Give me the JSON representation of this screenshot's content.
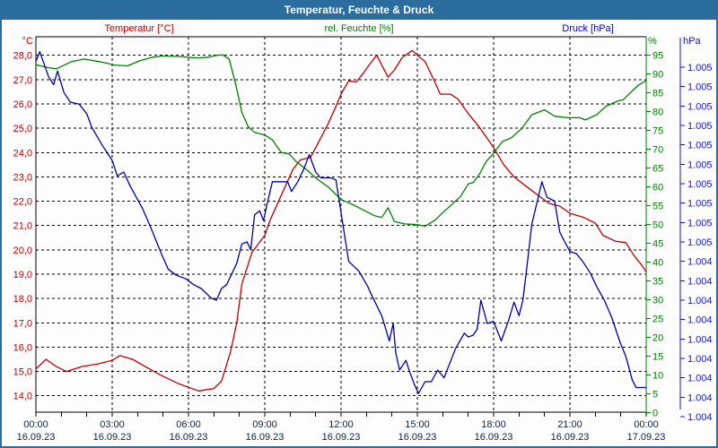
{
  "window": {
    "title": "Temperatur, Feuchte & Druck"
  },
  "header": {
    "temp_label": "Temperatur [°C]",
    "humidity_label": "rel. Feuchte [%]",
    "pressure_label": "Druck [hPa]"
  },
  "axes": {
    "left": {
      "unit": "°C",
      "color": "#c00000",
      "tick_labels": [
        "28,0",
        "27,0",
        "26,0",
        "25,0",
        "24,0",
        "23,0",
        "22,0",
        "21,0",
        "20,0",
        "19,0",
        "18,0",
        "17,0",
        "16,0",
        "15,0",
        "14,0"
      ]
    },
    "humidity": {
      "unit": "%",
      "color": "#008000",
      "tick_labels": [
        "95",
        "90",
        "85",
        "80",
        "75",
        "70",
        "65",
        "60",
        "55",
        "50",
        "45",
        "40",
        "35",
        "30",
        "25",
        "20",
        "15",
        "10",
        "5",
        "0"
      ]
    },
    "pressure": {
      "unit": "hPa",
      "color": "#1515cc",
      "tick_labels": [
        "1.005",
        "1.005",
        "1.005",
        "1.005",
        "1.005",
        "1.005",
        "1.005",
        "1.005",
        "1.005",
        "1.005",
        "1.004",
        "1.004",
        "1.004",
        "1.004",
        "1.004",
        "1.004",
        "1.004",
        "1.004",
        "1.004"
      ]
    },
    "x": {
      "times": [
        "00:00",
        "03:00",
        "06:00",
        "09:00",
        "12:00",
        "15:00",
        "18:00",
        "21:00",
        "00:00"
      ],
      "dates": [
        "16.09.23",
        "16.09.23",
        "16.09.23",
        "16.09.23",
        "16.09.23",
        "16.09.23",
        "16.09.23",
        "16.09.23",
        "17.09.23"
      ],
      "label_color": "#0d2040"
    }
  },
  "chart_data": {
    "type": "line",
    "title": "Temperatur, Feuchte & Druck",
    "x_axis": "time, hours from 00:00 16.09.23 to 00:00 17.09.23",
    "x_ticks_major_hours": [
      0,
      3,
      6,
      9,
      12,
      15,
      18,
      21,
      24
    ],
    "grid": "horizontal dashed line per 1 °C, vertical dashed line per 3 h, hourly minor ticks",
    "axes": {
      "temperature": {
        "min": 14.0,
        "max": 28.0,
        "step": 1.0
      },
      "humidity": {
        "min": 0,
        "max": 95,
        "step": 5
      },
      "pressure": {
        "min": 1003.6,
        "max": 1005.4,
        "tick_step": 0.1
      }
    },
    "series": [
      {
        "name": "Temperatur",
        "unit": "°C",
        "color": "#c00000",
        "scale": "temperature",
        "points": [
          [
            0,
            15.1
          ],
          [
            0.4,
            15.5
          ],
          [
            0.8,
            15.2
          ],
          [
            1.2,
            15.0
          ],
          [
            1.8,
            15.2
          ],
          [
            2.4,
            15.3
          ],
          [
            3.0,
            15.45
          ],
          [
            3.3,
            15.65
          ],
          [
            3.8,
            15.5
          ],
          [
            4.3,
            15.2
          ],
          [
            4.9,
            14.85
          ],
          [
            5.6,
            14.5
          ],
          [
            6.0,
            14.35
          ],
          [
            6.4,
            14.2
          ],
          [
            7.0,
            14.3
          ],
          [
            7.3,
            14.6
          ],
          [
            7.65,
            15.8
          ],
          [
            7.9,
            17.0
          ],
          [
            8.1,
            18.6
          ],
          [
            8.5,
            19.9
          ],
          [
            9.0,
            20.6
          ],
          [
            9.2,
            21.2
          ],
          [
            9.5,
            21.9
          ],
          [
            9.8,
            22.6
          ],
          [
            10.1,
            23.3
          ],
          [
            10.4,
            23.7
          ],
          [
            10.8,
            23.8
          ],
          [
            11.1,
            24.4
          ],
          [
            11.5,
            25.2
          ],
          [
            11.8,
            25.9
          ],
          [
            12.0,
            26.4
          ],
          [
            12.3,
            26.95
          ],
          [
            12.6,
            26.9
          ],
          [
            12.9,
            27.3
          ],
          [
            13.1,
            27.6
          ],
          [
            13.4,
            28.0
          ],
          [
            13.6,
            27.6
          ],
          [
            13.85,
            27.1
          ],
          [
            14.1,
            27.4
          ],
          [
            14.4,
            27.9
          ],
          [
            14.8,
            28.2
          ],
          [
            15.0,
            28.0
          ],
          [
            15.3,
            27.75
          ],
          [
            15.6,
            27.1
          ],
          [
            15.9,
            26.4
          ],
          [
            16.3,
            26.4
          ],
          [
            16.6,
            26.2
          ],
          [
            17.0,
            25.6
          ],
          [
            17.4,
            25.1
          ],
          [
            18.0,
            24.2
          ],
          [
            18.4,
            23.5
          ],
          [
            18.8,
            23.0
          ],
          [
            19.3,
            22.6
          ],
          [
            19.8,
            22.2
          ],
          [
            20.2,
            21.9
          ],
          [
            20.6,
            21.8
          ],
          [
            21.0,
            21.5
          ],
          [
            21.5,
            21.35
          ],
          [
            22.0,
            21.1
          ],
          [
            22.3,
            20.6
          ],
          [
            22.8,
            20.35
          ],
          [
            23.2,
            20.3
          ],
          [
            23.5,
            19.8
          ],
          [
            23.8,
            19.4
          ],
          [
            24,
            19.1
          ]
        ]
      },
      {
        "name": "rel. Feuchte",
        "unit": "%",
        "color": "#008000",
        "scale": "humidity",
        "points": [
          [
            0,
            92.5
          ],
          [
            0.5,
            91.7
          ],
          [
            0.8,
            91.4
          ],
          [
            1.4,
            93.3
          ],
          [
            1.9,
            94.0
          ],
          [
            2.5,
            93.3
          ],
          [
            3.1,
            92.4
          ],
          [
            3.6,
            92.2
          ],
          [
            4.1,
            93.6
          ],
          [
            4.6,
            94.5
          ],
          [
            5.0,
            94.8
          ],
          [
            5.6,
            94.7
          ],
          [
            6.1,
            94.4
          ],
          [
            6.4,
            94.3
          ],
          [
            6.8,
            94.5
          ],
          [
            7.1,
            95.0
          ],
          [
            7.35,
            95.1
          ],
          [
            7.6,
            94.0
          ],
          [
            7.85,
            87.5
          ],
          [
            8.1,
            79.8
          ],
          [
            8.35,
            76.0
          ],
          [
            8.6,
            74.5
          ],
          [
            9.0,
            73.8
          ],
          [
            9.3,
            72.5
          ],
          [
            9.65,
            69.2
          ],
          [
            9.95,
            68.8
          ],
          [
            10.25,
            66.7
          ],
          [
            10.7,
            64.3
          ],
          [
            11.0,
            62.4
          ],
          [
            11.5,
            60.0
          ],
          [
            12.0,
            56.7
          ],
          [
            12.5,
            55.2
          ],
          [
            12.9,
            53.8
          ],
          [
            13.3,
            52.4
          ],
          [
            13.6,
            51.9
          ],
          [
            13.85,
            54.5
          ],
          [
            14.1,
            50.8
          ],
          [
            14.5,
            50.2
          ],
          [
            15.0,
            50.0
          ],
          [
            15.3,
            49.6
          ],
          [
            15.7,
            51.2
          ],
          [
            16.0,
            53.2
          ],
          [
            16.3,
            55.0
          ],
          [
            16.7,
            57.5
          ],
          [
            17.0,
            60.8
          ],
          [
            17.2,
            61.2
          ],
          [
            17.45,
            63.5
          ],
          [
            17.7,
            66.7
          ],
          [
            18.0,
            69.0
          ],
          [
            18.35,
            72.1
          ],
          [
            18.7,
            73.1
          ],
          [
            19.1,
            75.5
          ],
          [
            19.5,
            79.2
          ],
          [
            20.0,
            80.5
          ],
          [
            20.4,
            78.8
          ],
          [
            20.9,
            78.4
          ],
          [
            21.4,
            78.4
          ],
          [
            21.6,
            77.8
          ],
          [
            22.05,
            79.2
          ],
          [
            22.4,
            81.4
          ],
          [
            22.9,
            82.9
          ],
          [
            23.1,
            83.2
          ],
          [
            23.4,
            85.2
          ],
          [
            23.7,
            87.1
          ],
          [
            24,
            88.3
          ]
        ]
      },
      {
        "name": "Druck",
        "unit": "hPa",
        "color": "#0000a0",
        "scale": "pressure",
        "points": [
          [
            0,
            1005.43
          ],
          [
            0.15,
            1005.48
          ],
          [
            0.5,
            1005.35
          ],
          [
            0.7,
            1005.31
          ],
          [
            0.85,
            1005.38
          ],
          [
            1.1,
            1005.27
          ],
          [
            1.35,
            1005.22
          ],
          [
            1.7,
            1005.21
          ],
          [
            2.0,
            1005.16
          ],
          [
            2.2,
            1005.09
          ],
          [
            2.6,
            1005.0
          ],
          [
            3.0,
            1004.92
          ],
          [
            3.2,
            1004.84
          ],
          [
            3.45,
            1004.86
          ],
          [
            3.7,
            1004.79
          ],
          [
            3.95,
            1004.73
          ],
          [
            4.2,
            1004.67
          ],
          [
            4.5,
            1004.58
          ],
          [
            4.9,
            1004.45
          ],
          [
            5.2,
            1004.36
          ],
          [
            5.5,
            1004.33
          ],
          [
            5.9,
            1004.31
          ],
          [
            6.2,
            1004.28
          ],
          [
            6.5,
            1004.26
          ],
          [
            6.9,
            1004.21
          ],
          [
            7.1,
            1004.2
          ],
          [
            7.3,
            1004.26
          ],
          [
            7.5,
            1004.28
          ],
          [
            7.9,
            1004.39
          ],
          [
            8.1,
            1004.49
          ],
          [
            8.3,
            1004.5
          ],
          [
            8.45,
            1004.46
          ],
          [
            8.6,
            1004.64
          ],
          [
            8.8,
            1004.66
          ],
          [
            8.95,
            1004.61
          ],
          [
            9.1,
            1004.7
          ],
          [
            9.3,
            1004.81
          ],
          [
            9.9,
            1004.81
          ],
          [
            10.05,
            1004.76
          ],
          [
            10.3,
            1004.81
          ],
          [
            10.55,
            1004.88
          ],
          [
            10.75,
            1004.95
          ],
          [
            11.0,
            1004.86
          ],
          [
            11.2,
            1004.83
          ],
          [
            11.6,
            1004.83
          ],
          [
            11.8,
            1004.82
          ],
          [
            12.05,
            1004.61
          ],
          [
            12.3,
            1004.4
          ],
          [
            12.7,
            1004.35
          ],
          [
            13.05,
            1004.27
          ],
          [
            13.15,
            1004.24
          ],
          [
            13.6,
            1004.12
          ],
          [
            13.9,
            1003.99
          ],
          [
            14.05,
            1004.08
          ],
          [
            14.15,
            1003.93
          ],
          [
            14.3,
            1003.84
          ],
          [
            14.55,
            1003.89
          ],
          [
            14.7,
            1003.83
          ],
          [
            14.9,
            1003.76
          ],
          [
            15.05,
            1003.72
          ],
          [
            15.3,
            1003.78
          ],
          [
            15.55,
            1003.78
          ],
          [
            15.8,
            1003.84
          ],
          [
            16.05,
            1003.8
          ],
          [
            16.5,
            1003.95
          ],
          [
            16.85,
            1004.03
          ],
          [
            17.0,
            1004.01
          ],
          [
            17.2,
            1004.02
          ],
          [
            17.35,
            1004.05
          ],
          [
            17.5,
            1004.2
          ],
          [
            17.75,
            1004.08
          ],
          [
            18.0,
            1004.09
          ],
          [
            18.3,
            1003.99
          ],
          [
            18.6,
            1004.1
          ],
          [
            18.8,
            1004.19
          ],
          [
            19.0,
            1004.12
          ],
          [
            19.15,
            1004.2
          ],
          [
            19.3,
            1004.36
          ],
          [
            19.5,
            1004.59
          ],
          [
            19.9,
            1004.81
          ],
          [
            20.1,
            1004.73
          ],
          [
            20.4,
            1004.71
          ],
          [
            20.6,
            1004.55
          ],
          [
            20.8,
            1004.5
          ],
          [
            21.0,
            1004.45
          ],
          [
            21.25,
            1004.44
          ],
          [
            21.5,
            1004.4
          ],
          [
            21.8,
            1004.34
          ],
          [
            22.05,
            1004.27
          ],
          [
            22.35,
            1004.2
          ],
          [
            22.65,
            1004.11
          ],
          [
            22.95,
            1003.99
          ],
          [
            23.2,
            1003.91
          ],
          [
            23.45,
            1003.79
          ],
          [
            23.6,
            1003.75
          ],
          [
            24,
            1003.75
          ]
        ]
      }
    ],
    "legend_position": "top, outside plot"
  }
}
